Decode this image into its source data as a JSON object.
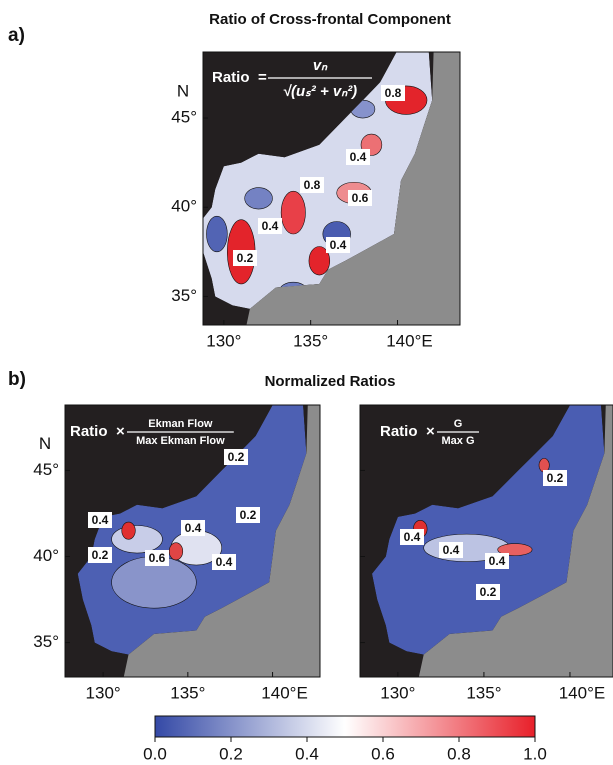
{
  "panel_a": {
    "label": "a)",
    "title": "Ratio of Cross-frontal Component",
    "formula": {
      "lhs": "Ratio",
      "op": "=",
      "numerator": "vₙ",
      "denominator": "√(uₛ² + vₙ²)"
    },
    "lonlim": [
      128.8,
      143.6
    ],
    "latlim": [
      33.4,
      48.7
    ],
    "lat_axis_label": "N",
    "latticks": [
      {
        "value": 35,
        "label": "35°"
      },
      {
        "value": 40,
        "label": "40°"
      },
      {
        "value": 45,
        "label": "45°"
      }
    ],
    "lonticks": [
      {
        "value": 130,
        "label": "130°"
      },
      {
        "value": 135,
        "label": "135°"
      },
      {
        "value": 140,
        "label": "140°E"
      }
    ],
    "contour_labels": [
      "0.8",
      "0.4",
      "0.8",
      "0.6",
      "0.4",
      "0.2",
      "0.4"
    ]
  },
  "panel_b": {
    "label": "b)",
    "title": "Normalized Ratios",
    "lat_axis_label": "N",
    "latticks": [
      {
        "value": 35,
        "label": "35°"
      },
      {
        "value": 40,
        "label": "40°"
      },
      {
        "value": 45,
        "label": "45°"
      }
    ],
    "maps": [
      {
        "formula": {
          "lhs": "Ratio",
          "op": "×",
          "numerator": "Ekman Flow",
          "denominator": "Max Ekman Flow"
        },
        "lonlim": [
          127.75,
          142.8
        ],
        "latlim": [
          33.0,
          48.8
        ],
        "lonticks": [
          {
            "value": 130,
            "label": "130°"
          },
          {
            "value": 135,
            "label": "135°"
          },
          {
            "value": 140,
            "label": "140°E"
          }
        ],
        "contour_labels": [
          "0.2",
          "0.2",
          "0.4",
          "0.4",
          "0.6",
          "0.4",
          "0.2"
        ]
      },
      {
        "formula": {
          "lhs": "Ratio",
          "op": "×",
          "numerator": "G",
          "denominator": "Max G"
        },
        "lonlim": [
          127.8,
          142.5
        ],
        "latlim": [
          33.0,
          48.8
        ],
        "lonticks": [
          {
            "value": 130,
            "label": "130°"
          },
          {
            "value": 135,
            "label": "135°"
          },
          {
            "value": 140,
            "label": "140°E"
          }
        ],
        "contour_labels": [
          "0.2",
          "0.4",
          "0.4",
          "0.4",
          "0.2"
        ]
      }
    ]
  },
  "colorbar": {
    "range": [
      0,
      1
    ],
    "colors": [
      "#3449a6",
      "#ffffff",
      "#e8202a"
    ],
    "ticks": [
      {
        "value": 0,
        "label": "0.0"
      },
      {
        "value": 0.2,
        "label": "0.2"
      },
      {
        "value": 0.4,
        "label": "0.4"
      },
      {
        "value": 0.6,
        "label": "0.6"
      },
      {
        "value": 0.8,
        "label": "0.8"
      },
      {
        "value": 1,
        "label": "1.0"
      }
    ]
  }
}
